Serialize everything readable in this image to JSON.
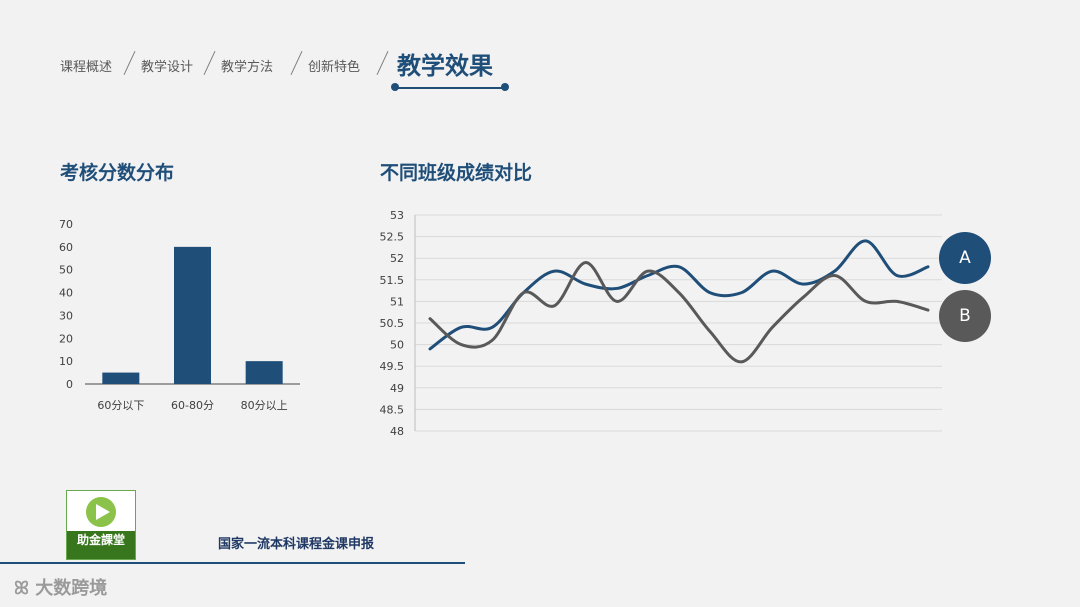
{
  "nav": {
    "items": [
      "课程概述",
      "教学设计",
      "教学方法",
      "创新特色"
    ],
    "active": "教学效果"
  },
  "left_title": "考核分数分布",
  "right_title": "不同班级成绩对比",
  "footer": {
    "text": "国家一流本科课程金课申报",
    "logo_text": "助金課堂"
  },
  "watermark": "大数跨境",
  "colors": {
    "primary": "#1f4e79",
    "series_b": "#595959",
    "accent_green": "#38761d"
  },
  "chart_data": [
    {
      "type": "bar",
      "categories": [
        "60分以下",
        "60-80分",
        "80分以上"
      ],
      "values": [
        5,
        60,
        10
      ],
      "ylim": [
        0,
        70
      ],
      "yticks": [
        0,
        10,
        20,
        30,
        40,
        50,
        60,
        70
      ],
      "grid": false
    },
    {
      "type": "line",
      "series": [
        {
          "name": "A",
          "values": [
            49.9,
            50.4,
            50.4,
            51.2,
            51.7,
            51.4,
            51.3,
            51.6,
            51.8,
            51.2,
            51.2,
            51.7,
            51.4,
            51.7,
            52.4,
            51.6,
            51.8
          ]
        },
        {
          "name": "B",
          "values": [
            50.6,
            50.0,
            50.1,
            51.2,
            50.9,
            51.9,
            51.0,
            51.7,
            51.2,
            50.3,
            49.6,
            50.4,
            51.1,
            51.6,
            51.0,
            51.0,
            50.8
          ]
        }
      ],
      "ylim": [
        48,
        53
      ],
      "yticks": [
        "48",
        "48.5",
        "49",
        "49.5",
        "50",
        "50.5",
        "51",
        "51.5",
        "52",
        "52.5",
        "53"
      ],
      "grid": true,
      "legend": "right"
    }
  ]
}
